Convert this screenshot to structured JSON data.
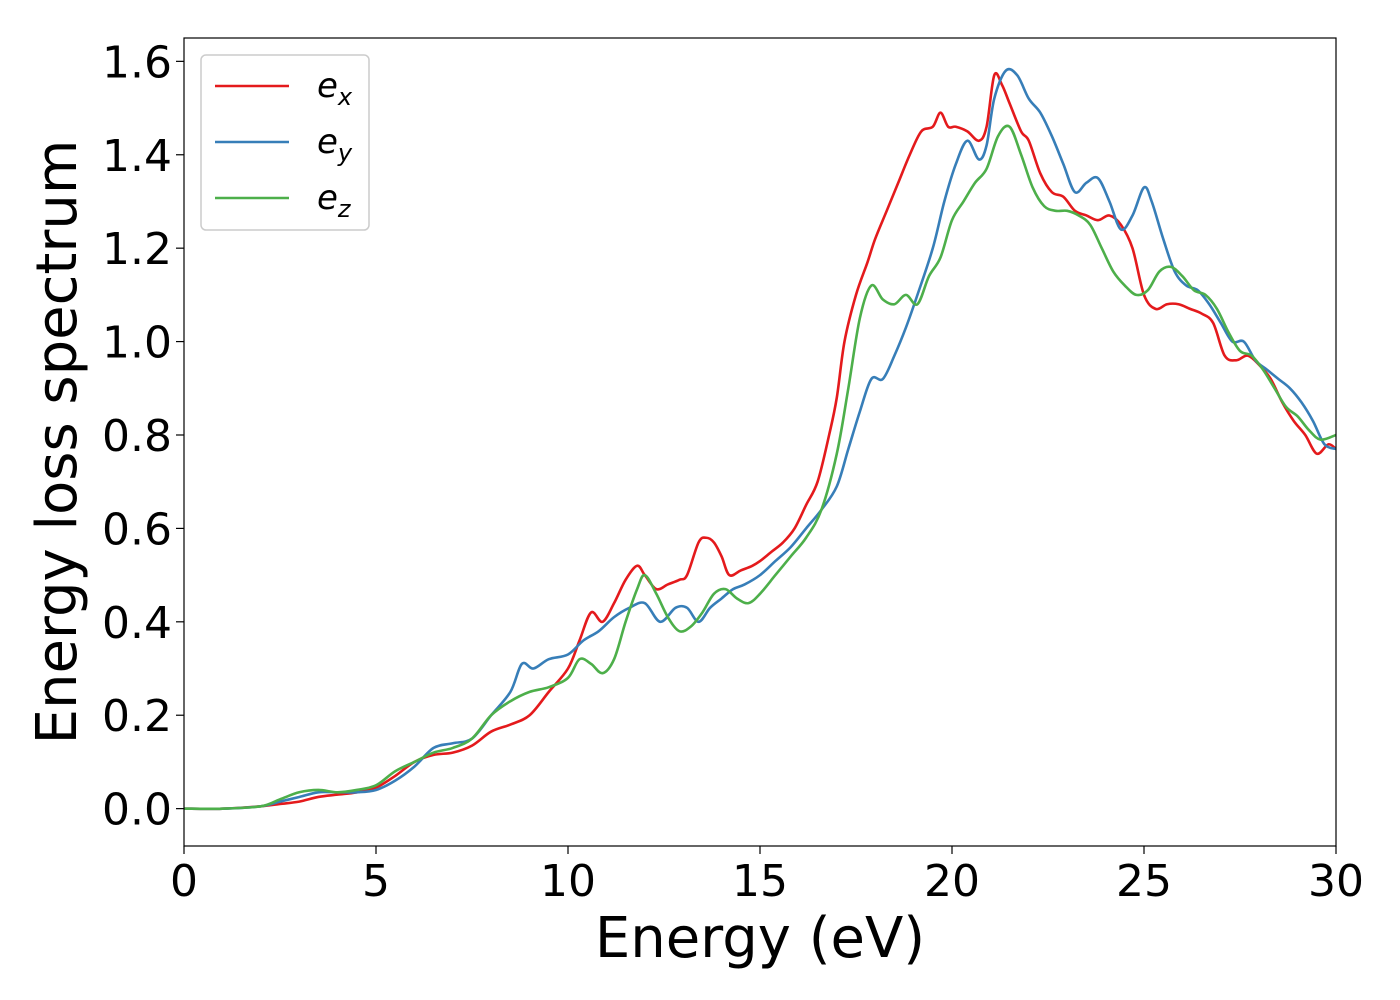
{
  "chart_data": {
    "type": "line",
    "title": "",
    "xlabel": "Energy (eV)",
    "ylabel": "Energy loss spectrum",
    "xlim": [
      0,
      30
    ],
    "ylim": [
      -0.08,
      1.65
    ],
    "xticks": [
      0,
      5,
      10,
      15,
      20,
      25,
      30
    ],
    "xtick_labels": [
      "0",
      "5",
      "10",
      "15",
      "20",
      "25",
      "30"
    ],
    "yticks": [
      0.0,
      0.2,
      0.4,
      0.6,
      0.8,
      1.0,
      1.2,
      1.4,
      1.6
    ],
    "ytick_labels": [
      "0.0",
      "0.2",
      "0.4",
      "0.6",
      "0.8",
      "1.0",
      "1.2",
      "1.4",
      "1.6"
    ],
    "grid": false,
    "legend_position": "top-left",
    "series": [
      {
        "name": "e",
        "sub": "x",
        "color": "#e41a1c",
        "x": [
          0,
          1,
          2,
          2.5,
          3,
          3.5,
          4,
          4.5,
          5,
          5.5,
          6,
          6.5,
          7,
          7.5,
          8,
          8.5,
          9,
          9.5,
          10,
          10.3,
          10.6,
          10.9,
          11.2,
          11.5,
          11.8,
          12,
          12.3,
          12.6,
          12.9,
          13.1,
          13.4,
          13.6,
          13.8,
          14,
          14.2,
          14.5,
          14.8,
          15,
          15.3,
          15.6,
          15.9,
          16.2,
          16.5,
          16.8,
          17,
          17.2,
          17.5,
          17.8,
          18,
          18.3,
          18.6,
          18.9,
          19.2,
          19.5,
          19.7,
          19.9,
          20.1,
          20.4,
          20.7,
          20.9,
          21.1,
          21.3,
          21.5,
          21.8,
          22,
          22.3,
          22.6,
          22.9,
          23.2,
          23.5,
          23.8,
          24.1,
          24.4,
          24.7,
          25,
          25.3,
          25.6,
          25.9,
          26.2,
          26.5,
          26.8,
          27.1,
          27.4,
          27.7,
          28,
          28.3,
          28.6,
          28.9,
          29.2,
          29.5,
          29.8,
          30
        ],
        "y": [
          0,
          0,
          0.005,
          0.01,
          0.015,
          0.025,
          0.03,
          0.035,
          0.045,
          0.07,
          0.1,
          0.115,
          0.12,
          0.135,
          0.165,
          0.18,
          0.2,
          0.25,
          0.3,
          0.36,
          0.42,
          0.4,
          0.44,
          0.49,
          0.52,
          0.5,
          0.47,
          0.48,
          0.49,
          0.5,
          0.57,
          0.58,
          0.57,
          0.54,
          0.5,
          0.51,
          0.52,
          0.53,
          0.55,
          0.57,
          0.6,
          0.65,
          0.7,
          0.8,
          0.88,
          1.0,
          1.1,
          1.17,
          1.22,
          1.28,
          1.34,
          1.4,
          1.45,
          1.46,
          1.49,
          1.46,
          1.46,
          1.45,
          1.43,
          1.46,
          1.57,
          1.55,
          1.51,
          1.45,
          1.43,
          1.36,
          1.32,
          1.31,
          1.28,
          1.27,
          1.26,
          1.27,
          1.25,
          1.2,
          1.1,
          1.07,
          1.08,
          1.08,
          1.07,
          1.06,
          1.04,
          0.97,
          0.96,
          0.97,
          0.95,
          0.92,
          0.87,
          0.83,
          0.8,
          0.76,
          0.78,
          0.77
        ]
      },
      {
        "name": "e",
        "sub": "y",
        "color": "#377eb8",
        "x": [
          0,
          1,
          2,
          2.5,
          3,
          3.5,
          4,
          4.5,
          5,
          5.5,
          6,
          6.5,
          7,
          7.5,
          8,
          8.5,
          8.8,
          9.1,
          9.5,
          10,
          10.4,
          10.8,
          11.2,
          11.6,
          12,
          12.4,
          12.8,
          13.1,
          13.4,
          13.7,
          14,
          14.3,
          14.6,
          15,
          15.4,
          15.8,
          16.2,
          16.6,
          17,
          17.3,
          17.6,
          17.9,
          18.2,
          18.5,
          18.8,
          19.1,
          19.5,
          19.8,
          20.1,
          20.4,
          20.7,
          20.9,
          21.1,
          21.4,
          21.7,
          22,
          22.3,
          22.6,
          22.9,
          23.2,
          23.5,
          23.8,
          24.1,
          24.4,
          24.7,
          25,
          25.2,
          25.5,
          25.8,
          26.1,
          26.4,
          26.7,
          27,
          27.3,
          27.6,
          27.9,
          28.2,
          28.5,
          28.8,
          29.1,
          29.4,
          29.7,
          30
        ],
        "y": [
          0,
          0,
          0.005,
          0.015,
          0.025,
          0.035,
          0.035,
          0.035,
          0.04,
          0.06,
          0.09,
          0.13,
          0.14,
          0.15,
          0.2,
          0.25,
          0.31,
          0.3,
          0.32,
          0.33,
          0.36,
          0.38,
          0.41,
          0.43,
          0.44,
          0.4,
          0.43,
          0.43,
          0.4,
          0.43,
          0.45,
          0.47,
          0.48,
          0.5,
          0.53,
          0.56,
          0.6,
          0.64,
          0.69,
          0.77,
          0.85,
          0.92,
          0.92,
          0.97,
          1.03,
          1.1,
          1.2,
          1.3,
          1.38,
          1.43,
          1.39,
          1.42,
          1.52,
          1.58,
          1.57,
          1.52,
          1.49,
          1.44,
          1.38,
          1.32,
          1.34,
          1.35,
          1.3,
          1.24,
          1.27,
          1.33,
          1.3,
          1.22,
          1.15,
          1.12,
          1.11,
          1.08,
          1.04,
          1.0,
          1.0,
          0.96,
          0.94,
          0.92,
          0.9,
          0.87,
          0.83,
          0.78,
          0.77
        ]
      },
      {
        "name": "e",
        "sub": "z",
        "color": "#4daf4a",
        "x": [
          0,
          1,
          2,
          2.5,
          3,
          3.5,
          4,
          4.5,
          5,
          5.5,
          6,
          6.5,
          7,
          7.5,
          8,
          8.5,
          9,
          9.5,
          10,
          10.3,
          10.6,
          10.9,
          11.2,
          11.5,
          11.8,
          12,
          12.3,
          12.6,
          12.9,
          13.2,
          13.5,
          13.8,
          14.1,
          14.4,
          14.7,
          15,
          15.4,
          15.8,
          16.2,
          16.6,
          17,
          17.3,
          17.6,
          17.9,
          18.2,
          18.5,
          18.8,
          19.1,
          19.4,
          19.7,
          20,
          20.3,
          20.6,
          20.9,
          21.2,
          21.5,
          21.8,
          22.1,
          22.4,
          22.7,
          23,
          23.3,
          23.6,
          23.9,
          24.2,
          24.5,
          24.8,
          25.1,
          25.4,
          25.7,
          26,
          26.3,
          26.6,
          26.9,
          27.2,
          27.5,
          27.8,
          28.1,
          28.4,
          28.7,
          29,
          29.3,
          29.6,
          30
        ],
        "y": [
          0,
          0,
          0.005,
          0.02,
          0.035,
          0.04,
          0.035,
          0.04,
          0.05,
          0.08,
          0.1,
          0.12,
          0.13,
          0.15,
          0.2,
          0.23,
          0.25,
          0.26,
          0.28,
          0.32,
          0.31,
          0.29,
          0.32,
          0.4,
          0.47,
          0.5,
          0.46,
          0.41,
          0.38,
          0.39,
          0.42,
          0.46,
          0.47,
          0.45,
          0.44,
          0.46,
          0.5,
          0.54,
          0.58,
          0.64,
          0.76,
          0.9,
          1.05,
          1.12,
          1.09,
          1.08,
          1.1,
          1.08,
          1.14,
          1.18,
          1.26,
          1.3,
          1.34,
          1.37,
          1.44,
          1.46,
          1.4,
          1.33,
          1.29,
          1.28,
          1.28,
          1.27,
          1.25,
          1.2,
          1.15,
          1.12,
          1.1,
          1.11,
          1.15,
          1.16,
          1.14,
          1.11,
          1.1,
          1.07,
          1.02,
          0.98,
          0.97,
          0.94,
          0.9,
          0.86,
          0.84,
          0.81,
          0.79,
          0.8
        ]
      }
    ]
  }
}
